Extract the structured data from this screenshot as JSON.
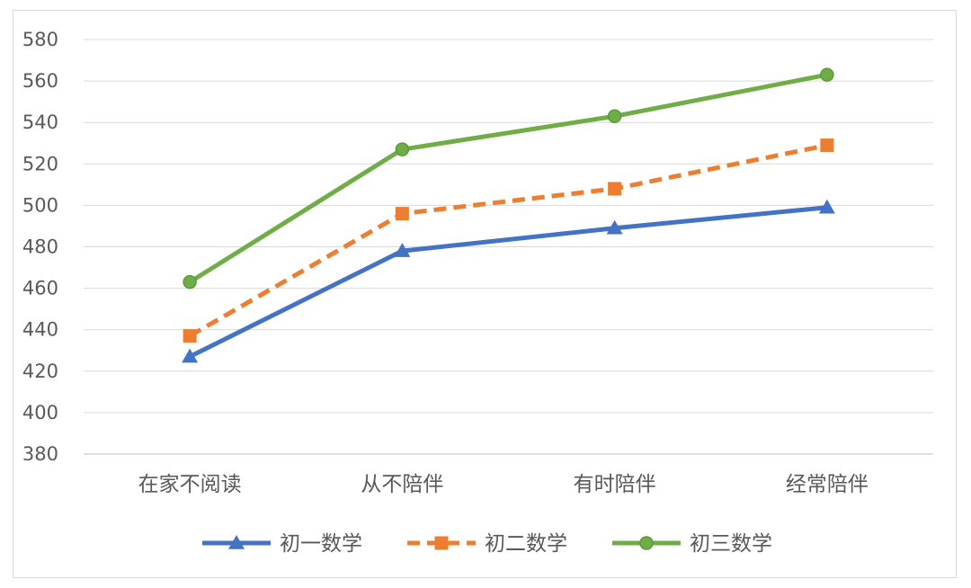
{
  "chart_data": {
    "type": "line",
    "title": "",
    "xlabel": "",
    "ylabel": "",
    "categories": [
      "在家不阅读",
      "从不陪伴",
      "有时陪伴",
      "经常陪伴"
    ],
    "ylim": [
      380,
      580
    ],
    "yticks": [
      380,
      400,
      420,
      440,
      460,
      480,
      500,
      520,
      540,
      560,
      580
    ],
    "grid": true,
    "legend_position": "bottom",
    "series": [
      {
        "name": "初一数学",
        "values": [
          427,
          478,
          489,
          499
        ],
        "color": "#4472C4",
        "marker": "triangle",
        "dash": "solid"
      },
      {
        "name": "初二数学",
        "values": [
          437,
          496,
          508,
          529
        ],
        "color": "#ED7D31",
        "marker": "square",
        "dash": "dashed"
      },
      {
        "name": "初三数学",
        "values": [
          463,
          527,
          543,
          563
        ],
        "color": "#70AD47",
        "marker": "circle",
        "dash": "solid"
      }
    ]
  }
}
